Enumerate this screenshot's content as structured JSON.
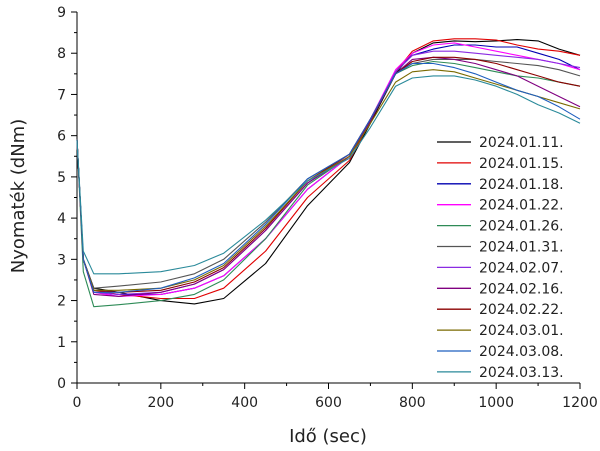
{
  "chart_data": {
    "type": "line",
    "xlabel": "Idő (sec)",
    "ylabel": "Nyomaték (dNm)",
    "xlim": [
      0,
      1200
    ],
    "ylim": [
      0,
      9
    ],
    "xticks": [
      0,
      200,
      400,
      600,
      800,
      1000,
      1200
    ],
    "yticks": [
      0,
      1,
      2,
      3,
      4,
      5,
      6,
      7,
      8,
      9
    ],
    "grid": false,
    "legend_position": "right",
    "series": [
      {
        "name": "2024.01.11.",
        "color": "#000000",
        "x": [
          0,
          15,
          40,
          100,
          200,
          280,
          350,
          450,
          550,
          650,
          700,
          760,
          800,
          850,
          900,
          950,
          1000,
          1050,
          1100,
          1150,
          1200
        ],
        "y": [
          5.9,
          3.0,
          2.3,
          2.2,
          2.0,
          1.92,
          2.05,
          2.9,
          4.3,
          5.35,
          6.3,
          7.5,
          8.0,
          8.25,
          8.3,
          8.28,
          8.3,
          8.33,
          8.3,
          8.1,
          7.95
        ]
      },
      {
        "name": "2024.01.15.",
        "color": "#e00000",
        "x": [
          0,
          15,
          40,
          100,
          200,
          280,
          350,
          450,
          550,
          650,
          700,
          760,
          800,
          850,
          900,
          950,
          1000,
          1050,
          1100,
          1150,
          1200
        ],
        "y": [
          5.9,
          3.0,
          2.25,
          2.15,
          2.05,
          2.05,
          2.3,
          3.2,
          4.5,
          5.4,
          6.35,
          7.55,
          8.05,
          8.3,
          8.35,
          8.35,
          8.32,
          8.2,
          8.1,
          8.05,
          7.95
        ]
      },
      {
        "name": "2024.01.18.",
        "color": "#0000b0",
        "x": [
          0,
          15,
          40,
          100,
          200,
          280,
          350,
          450,
          550,
          650,
          700,
          760,
          800,
          850,
          900,
          950,
          1000,
          1050,
          1100,
          1150,
          1200
        ],
        "y": [
          5.9,
          3.0,
          2.2,
          2.15,
          2.15,
          2.3,
          2.6,
          3.5,
          4.7,
          5.5,
          6.4,
          7.55,
          7.95,
          8.1,
          8.2,
          8.2,
          8.15,
          8.15,
          8.0,
          7.85,
          7.6
        ]
      },
      {
        "name": "2024.01.22.",
        "color": "#ff00ff",
        "x": [
          0,
          15,
          40,
          100,
          200,
          280,
          350,
          450,
          550,
          650,
          700,
          760,
          800,
          850,
          900,
          950,
          1000,
          1050,
          1100,
          1150,
          1200
        ],
        "y": [
          5.9,
          3.0,
          2.2,
          2.1,
          2.15,
          2.3,
          2.6,
          3.5,
          4.7,
          5.5,
          6.4,
          7.6,
          8.0,
          8.2,
          8.25,
          8.15,
          8.05,
          7.95,
          7.85,
          7.75,
          7.6
        ]
      },
      {
        "name": "2024.01.26.",
        "color": "#2e8b57",
        "x": [
          0,
          15,
          40,
          100,
          200,
          280,
          350,
          450,
          550,
          650,
          700,
          760,
          800,
          850,
          900,
          950,
          1000,
          1050,
          1100,
          1150,
          1200
        ],
        "y": [
          5.9,
          2.7,
          1.85,
          1.9,
          2.0,
          2.15,
          2.5,
          3.5,
          4.8,
          5.5,
          6.4,
          7.5,
          7.7,
          7.8,
          7.75,
          7.65,
          7.55,
          7.45,
          7.4,
          7.3,
          7.2
        ]
      },
      {
        "name": "2024.01.31.",
        "color": "#555555",
        "x": [
          0,
          15,
          40,
          100,
          200,
          280,
          350,
          450,
          550,
          650,
          700,
          760,
          800,
          850,
          900,
          950,
          1000,
          1050,
          1100,
          1150,
          1200
        ],
        "y": [
          5.9,
          3.0,
          2.3,
          2.35,
          2.45,
          2.65,
          3.0,
          3.9,
          4.95,
          5.55,
          6.4,
          7.5,
          7.75,
          7.85,
          7.85,
          7.85,
          7.8,
          7.75,
          7.7,
          7.6,
          7.45
        ]
      },
      {
        "name": "2024.02.07.",
        "color": "#8a2be2",
        "x": [
          0,
          15,
          40,
          100,
          200,
          280,
          350,
          450,
          550,
          650,
          700,
          760,
          800,
          850,
          900,
          950,
          1000,
          1050,
          1100,
          1150,
          1200
        ],
        "y": [
          5.9,
          3.0,
          2.2,
          2.15,
          2.2,
          2.4,
          2.75,
          3.7,
          4.85,
          5.55,
          6.4,
          7.55,
          7.95,
          8.05,
          8.05,
          8.0,
          7.95,
          7.9,
          7.85,
          7.75,
          7.65
        ]
      },
      {
        "name": "2024.02.16.",
        "color": "#800080",
        "x": [
          0,
          15,
          40,
          100,
          200,
          280,
          350,
          450,
          550,
          650,
          700,
          760,
          800,
          850,
          900,
          950,
          1000,
          1050,
          1100,
          1150,
          1200
        ],
        "y": [
          5.9,
          3.0,
          2.15,
          2.1,
          2.2,
          2.4,
          2.75,
          3.7,
          4.85,
          5.5,
          6.35,
          7.5,
          7.85,
          7.9,
          7.85,
          7.75,
          7.6,
          7.45,
          7.2,
          6.95,
          6.7
        ]
      },
      {
        "name": "2024.02.22.",
        "color": "#8b0000",
        "x": [
          0,
          15,
          40,
          100,
          200,
          280,
          350,
          450,
          550,
          650,
          700,
          760,
          800,
          850,
          900,
          950,
          1000,
          1050,
          1100,
          1150,
          1200
        ],
        "y": [
          5.9,
          3.0,
          2.25,
          2.2,
          2.25,
          2.45,
          2.8,
          3.75,
          4.9,
          5.55,
          6.4,
          7.5,
          7.8,
          7.9,
          7.9,
          7.85,
          7.75,
          7.6,
          7.45,
          7.3,
          7.2
        ]
      },
      {
        "name": "2024.03.01.",
        "color": "#7a6a00",
        "x": [
          0,
          15,
          40,
          100,
          200,
          280,
          350,
          450,
          550,
          650,
          700,
          760,
          800,
          850,
          900,
          950,
          1000,
          1050,
          1100,
          1150,
          1200
        ],
        "y": [
          5.9,
          3.0,
          2.25,
          2.25,
          2.3,
          2.5,
          2.85,
          3.8,
          4.9,
          5.5,
          6.3,
          7.3,
          7.55,
          7.6,
          7.55,
          7.4,
          7.25,
          7.1,
          6.95,
          6.8,
          6.65
        ]
      },
      {
        "name": "2024.03.08.",
        "color": "#1f5fbf",
        "x": [
          0,
          15,
          40,
          100,
          200,
          280,
          350,
          450,
          550,
          650,
          700,
          760,
          800,
          850,
          900,
          950,
          1000,
          1050,
          1100,
          1150,
          1200
        ],
        "y": [
          5.9,
          3.0,
          2.2,
          2.2,
          2.3,
          2.55,
          2.9,
          3.85,
          4.95,
          5.55,
          6.4,
          7.5,
          7.75,
          7.75,
          7.65,
          7.5,
          7.3,
          7.1,
          6.95,
          6.7,
          6.4
        ]
      },
      {
        "name": "2024.03.13.",
        "color": "#2a8a9a",
        "x": [
          0,
          15,
          40,
          100,
          200,
          280,
          350,
          450,
          550,
          650,
          700,
          760,
          800,
          850,
          900,
          950,
          1000,
          1050,
          1100,
          1150,
          1200
        ],
        "y": [
          5.9,
          3.2,
          2.65,
          2.65,
          2.7,
          2.85,
          3.15,
          3.95,
          4.9,
          5.45,
          6.2,
          7.2,
          7.4,
          7.45,
          7.45,
          7.35,
          7.2,
          7.0,
          6.75,
          6.55,
          6.3
        ]
      }
    ]
  }
}
